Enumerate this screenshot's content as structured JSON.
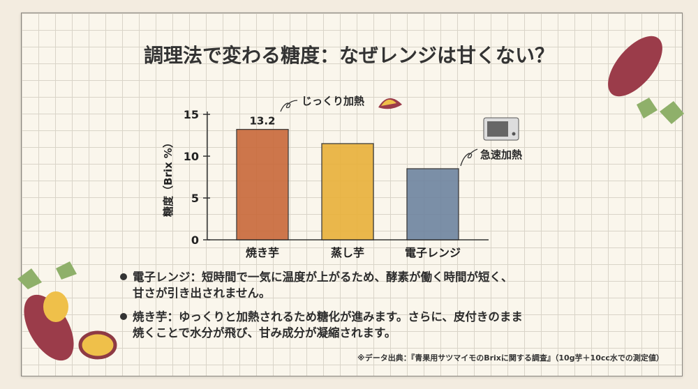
{
  "title": "調理法で変わる糖度：なぜレンジは甘くない？",
  "chart_data": {
    "type": "bar",
    "categories": [
      "焼き芋",
      "蒸し芋",
      "電子レンジ"
    ],
    "values": [
      13.2,
      11.5,
      8.5
    ],
    "data_labels": [
      "13.2",
      "",
      ""
    ],
    "colors": [
      "#c9693a",
      "#e9b13a",
      "#6e84a0"
    ],
    "xlabel": "",
    "ylabel": "糖度（Brix %）",
    "ylim": [
      0,
      15
    ],
    "yticks": [
      0,
      5,
      10,
      15
    ],
    "ytick_labels": [
      "0",
      "5",
      "10",
      "15"
    ],
    "grid": false,
    "annotations": [
      "じっくり加熱",
      "急速加熱"
    ]
  },
  "notes": [
    {
      "line1": "電子レンジ：短時間で一気に温度が上がるため、酵素が働く時間が短く、",
      "line2": "甘さが引き出されません。"
    },
    {
      "line1": "焼き芋：ゆっくりと加熱されるため糖化が進みます。さらに、皮付きのまま",
      "line2": "焼くことで水分が飛び、甘み成分が凝縮されます。"
    }
  ],
  "source": "※データ出典：『青果用サツマイモのBrixに関する調査』（10g芋＋10cc水での測定値）"
}
